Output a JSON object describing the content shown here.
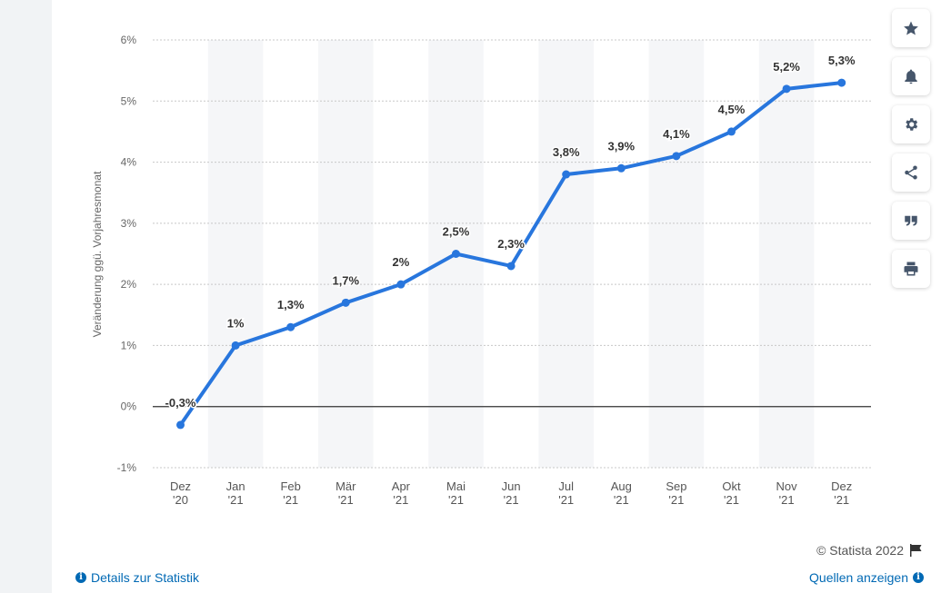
{
  "chart_data": {
    "type": "line",
    "ylabel": "Veränderung ggü. Vorjahresmonat",
    "categories": [
      [
        "Dez",
        "'20"
      ],
      [
        "Jan",
        "'21"
      ],
      [
        "Feb",
        "'21"
      ],
      [
        "Mär",
        "'21"
      ],
      [
        "Apr",
        "'21"
      ],
      [
        "Mai",
        "'21"
      ],
      [
        "Jun",
        "'21"
      ],
      [
        "Jul",
        "'21"
      ],
      [
        "Aug",
        "'21"
      ],
      [
        "Sep",
        "'21"
      ],
      [
        "Okt",
        "'21"
      ],
      [
        "Nov",
        "'21"
      ],
      [
        "Dez",
        "'21"
      ]
    ],
    "values": [
      -0.3,
      1,
      1.3,
      1.7,
      2,
      2.5,
      2.3,
      3.8,
      3.9,
      4.1,
      4.5,
      5.2,
      5.3
    ],
    "value_labels": [
      "-0,3%",
      "1%",
      "1,3%",
      "1,7%",
      "2%",
      "2,5%",
      "2,3%",
      "3,8%",
      "3,9%",
      "4,1%",
      "4,5%",
      "5,2%",
      "5,3%"
    ],
    "yticks": [
      -1,
      0,
      1,
      2,
      3,
      4,
      5,
      6
    ],
    "ytick_labels": [
      "-1%",
      "0%",
      "1%",
      "2%",
      "3%",
      "4%",
      "5%",
      "6%"
    ],
    "ylim": [
      -1,
      6
    ],
    "grid": true,
    "line_color": "#2876dd",
    "band_color": "#f5f6f8"
  },
  "footer": {
    "copyright": "© Statista 2022",
    "details_link": "Details zur Statistik",
    "sources_link": "Quellen anzeigen"
  },
  "toolbar": {
    "icons": [
      "star-icon",
      "bell-icon",
      "gear-icon",
      "share-icon",
      "quote-icon",
      "print-icon"
    ]
  }
}
